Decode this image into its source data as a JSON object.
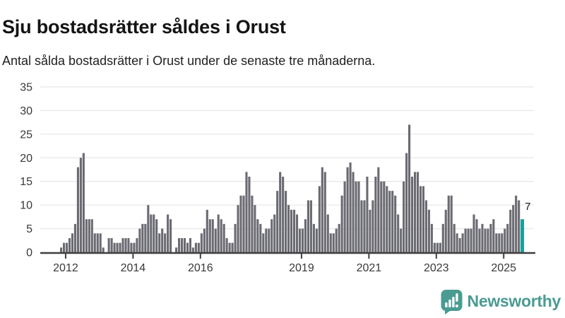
{
  "header": {
    "title": "Sju bostadsrätter såldes i Orust",
    "subtitle": "Antal sålda bostadsrätter i Orust under de senaste tre månaderna."
  },
  "chart_data": {
    "type": "bar",
    "title": "Sju bostadsrätter såldes i Orust",
    "description": "Antal sålda bostadsrätter i Orust under de senaste tre månaderna, rullande månadsvärden",
    "start_month": "2011-11",
    "end_month": "2025-07",
    "values": [
      1,
      2,
      2,
      3,
      4,
      6,
      18,
      20,
      21,
      7,
      7,
      7,
      4,
      4,
      4,
      1,
      0,
      3,
      3,
      2,
      2,
      2,
      3,
      3,
      3,
      2,
      2,
      3,
      5,
      6,
      6,
      10,
      8,
      8,
      7,
      4,
      5,
      4,
      8,
      7,
      0,
      1,
      3,
      3,
      3,
      2,
      3,
      1,
      2,
      2,
      4,
      5,
      9,
      7,
      7,
      5,
      8,
      7,
      6,
      3,
      2,
      2,
      6,
      10,
      12,
      12,
      17,
      16,
      12,
      10,
      7,
      6,
      4,
      5,
      5,
      7,
      8,
      13,
      17,
      16,
      13,
      10,
      9,
      9,
      8,
      5,
      5,
      7,
      11,
      11,
      6,
      5,
      14,
      18,
      17,
      8,
      4,
      4,
      5,
      6,
      12,
      15,
      18,
      19,
      17,
      15,
      15,
      11,
      11,
      16,
      9,
      11,
      16,
      18,
      15,
      15,
      14,
      13,
      13,
      12,
      8,
      5,
      15,
      21,
      27,
      16,
      17,
      17,
      14,
      14,
      11,
      9,
      6,
      2,
      2,
      2,
      6,
      9,
      12,
      12,
      6,
      4,
      3,
      4,
      5,
      5,
      5,
      8,
      7,
      5,
      6,
      5,
      5,
      6,
      7,
      4,
      4,
      4,
      5,
      6,
      9,
      10,
      12,
      11,
      7
    ],
    "highlight": {
      "index": 164,
      "value": 7,
      "label": "7"
    },
    "ylim": [
      0,
      35
    ],
    "yticks": [
      0,
      5,
      10,
      15,
      20,
      25,
      30,
      35
    ],
    "xticks": [
      "2012",
      "2014",
      "2016",
      "2019",
      "2021",
      "2023",
      "2025"
    ],
    "grid": true,
    "legend": "none",
    "colors": {
      "bar": "#6a6a72",
      "highlight": "#16a19b",
      "grid": "#e8e8e8",
      "axis": "#3f3f3f",
      "tick_text": "#383838"
    }
  },
  "footer": {
    "brand": "Newsworthy",
    "brand_color": "#4a9b91",
    "logo_icon": "newsworthy-speech-bubble-bar-chart-icon"
  }
}
